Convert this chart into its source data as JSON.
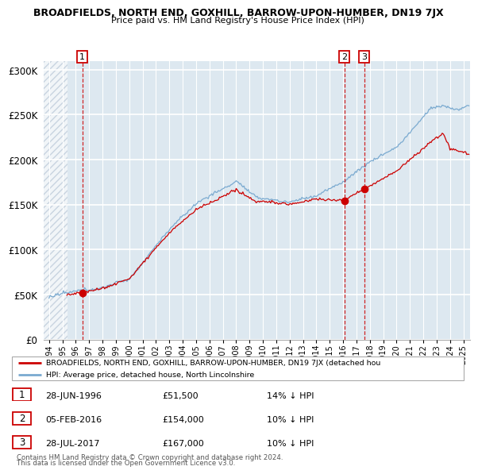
{
  "title": "BROADFIELDS, NORTH END, GOXHILL, BARROW-UPON-HUMBER, DN19 7JX",
  "subtitle": "Price paid vs. HM Land Registry's House Price Index (HPI)",
  "ylim": [
    0,
    310000
  ],
  "yticks": [
    0,
    50000,
    100000,
    150000,
    200000,
    250000,
    300000
  ],
  "ytick_labels": [
    "£0",
    "£50K",
    "£100K",
    "£150K",
    "£200K",
    "£250K",
    "£300K"
  ],
  "sale_years": [
    1996.49,
    2016.09,
    2017.57
  ],
  "sale_prices": [
    51500,
    154000,
    167000
  ],
  "sale_labels": [
    "1",
    "2",
    "3"
  ],
  "sale_info": [
    {
      "num": "1",
      "date": "28-JUN-1996",
      "price": "£51,500",
      "hpi": "14% ↓ HPI"
    },
    {
      "num": "2",
      "date": "05-FEB-2016",
      "price": "£154,000",
      "hpi": "10% ↓ HPI"
    },
    {
      "num": "3",
      "date": "28-JUL-2017",
      "price": "£167,000",
      "hpi": "10% ↓ HPI"
    }
  ],
  "legend_line1": "BROADFIELDS, NORTH END, GOXHILL, BARROW-UPON-HUMBER, DN19 7JX (detached hou",
  "legend_line2": "HPI: Average price, detached house, North Lincolnshire",
  "footnote1": "Contains HM Land Registry data © Crown copyright and database right 2024.",
  "footnote2": "This data is licensed under the Open Government Licence v3.0.",
  "sale_line_color": "#cc0000",
  "hpi_line_color": "#7aaad0",
  "plot_bg": "#dde8f0",
  "grid_color": "#ffffff",
  "hatch_color": "#c8d4e0"
}
